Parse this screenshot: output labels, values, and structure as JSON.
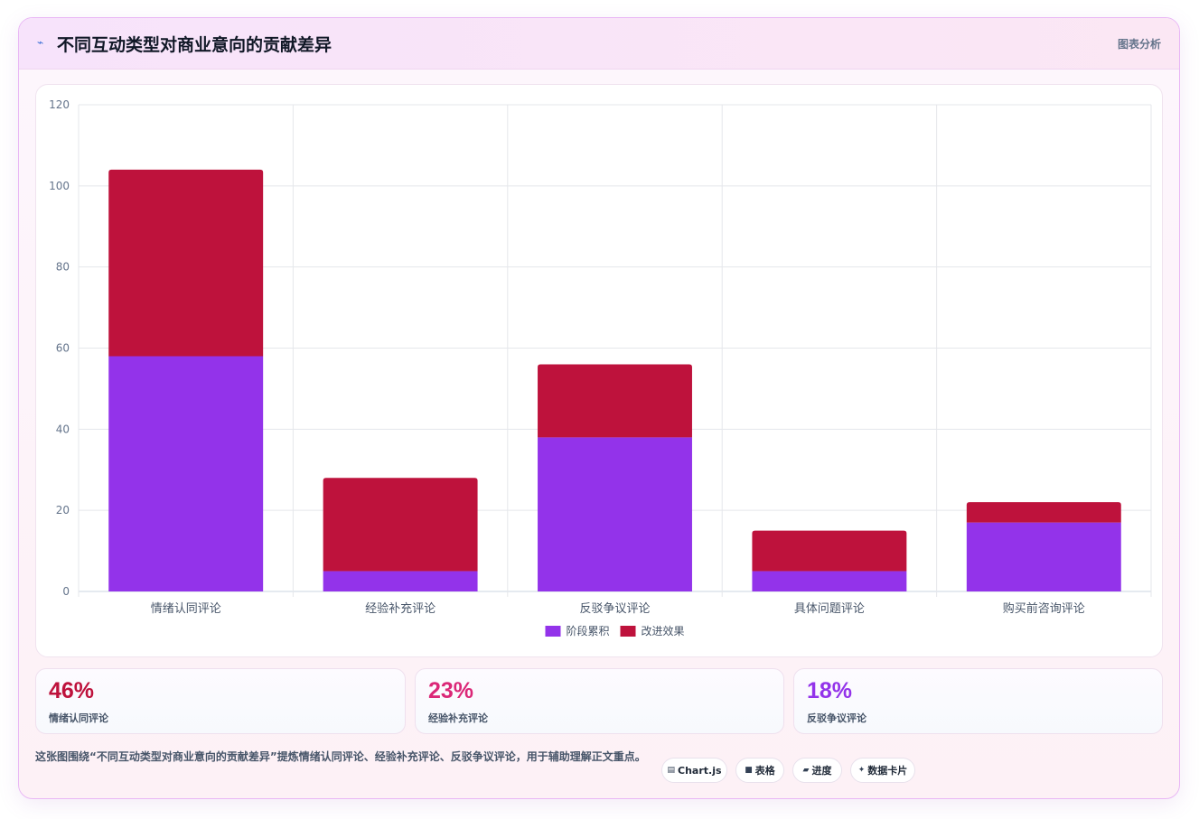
{
  "header": {
    "icon": "trend-line-icon",
    "title": "不同互动类型对商业意向的贡献差异",
    "tag": "图表分析"
  },
  "colors": {
    "series1": "#9333ea",
    "series2": "#be123c",
    "stat1": "#be123c",
    "stat2": "#db2777",
    "stat3": "#9333ea"
  },
  "chart_data": {
    "type": "bar",
    "stacked": true,
    "categories": [
      "情绪认同评论",
      "经验补充评论",
      "反驳争议评论",
      "具体问题评论",
      "购买前咨询评论"
    ],
    "series": [
      {
        "name": "阶段累积",
        "values": [
          58,
          5,
          38,
          5,
          17
        ],
        "color": "#9333ea"
      },
      {
        "name": "改进效果",
        "values": [
          46,
          23,
          18,
          10,
          5
        ],
        "color": "#be123c"
      }
    ],
    "ylim": [
      0,
      120
    ],
    "yticks": [
      0,
      20,
      40,
      60,
      80,
      100,
      120
    ],
    "grid": true,
    "legend": "bottom"
  },
  "stats": [
    {
      "value": "46%",
      "label": "情绪认同评论"
    },
    {
      "value": "23%",
      "label": "经验补充评论"
    },
    {
      "value": "18%",
      "label": "反驳争议评论"
    }
  ],
  "description": "这张图围绕“不同互动类型对商业意向的贡献差异”提炼情绪认同评论、经验补充评论、反驳争议评论，用于辅助理解正文重点。",
  "pills": [
    {
      "icon": "chart-icon",
      "glyph": "▤",
      "label": "Chart.js"
    },
    {
      "icon": "table-icon",
      "glyph": "■",
      "label": "表格"
    },
    {
      "icon": "progress-icon",
      "glyph": "▰",
      "label": "进度"
    },
    {
      "icon": "sparkle-icon",
      "glyph": "✦",
      "label": "数据卡片"
    }
  ]
}
